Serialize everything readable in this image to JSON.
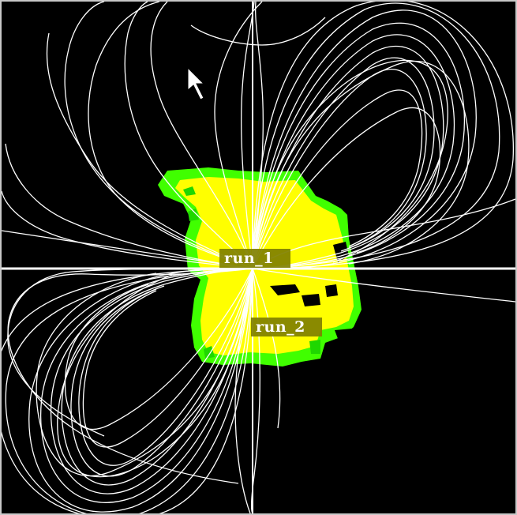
{
  "scene": {
    "background": "#000000",
    "surface_colors": {
      "core": "#ffff00",
      "edge": "#40ff00",
      "edge_dark": "#1fd700"
    },
    "field_line_color": "#ffffff",
    "axis_color": "#ffffff"
  },
  "labels": {
    "run1": "run_1",
    "run2": "run_2"
  },
  "cursor": {
    "icon": "arrow-pointer-icon"
  }
}
